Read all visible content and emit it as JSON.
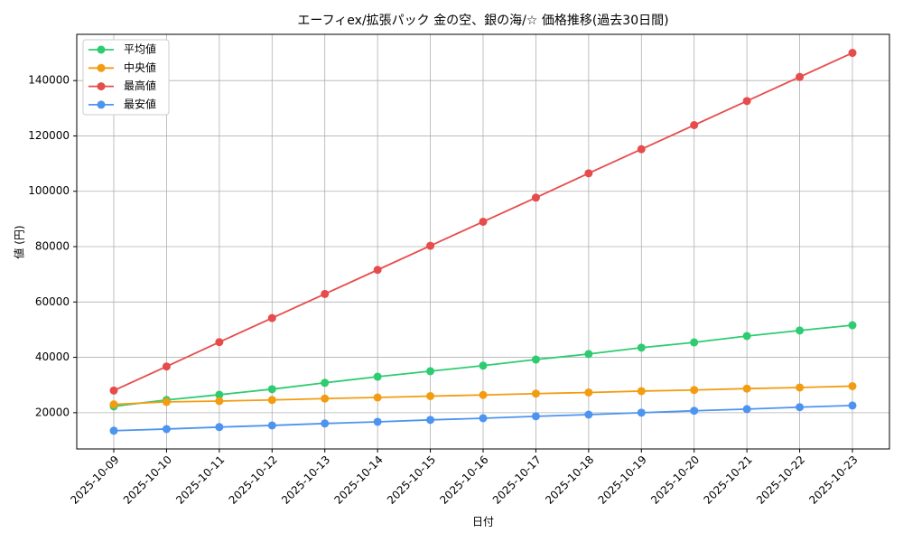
{
  "chart_data": {
    "type": "line",
    "title": "エーフィex/拡張パック 金の空、銀の海/☆ 価格推移(過去30日間)",
    "x_label": "日付",
    "y_label": "値 (円)",
    "categories": [
      "2025-10-09",
      "2025-10-10",
      "2025-10-11",
      "2025-10-12",
      "2025-10-13",
      "2025-10-14",
      "2025-10-15",
      "2025-10-16",
      "2025-10-17",
      "2025-10-18",
      "2025-10-19",
      "2025-10-20",
      "2025-10-21",
      "2025-10-22",
      "2025-10-23"
    ],
    "series": [
      {
        "name": "平均値",
        "color": "#2ecc71",
        "values": [
          22300,
          24600,
          26500,
          28500,
          30800,
          33000,
          35000,
          37000,
          39200,
          41200,
          43500,
          45400,
          47700,
          49700,
          51600
        ]
      },
      {
        "name": "中央値",
        "color": "#f39c12",
        "values": [
          23000,
          23900,
          24200,
          24600,
          25100,
          25500,
          26000,
          26400,
          26900,
          27300,
          27800,
          28200,
          28700,
          29100,
          29600
        ]
      },
      {
        "name": "最高値",
        "color": "#e74c4c",
        "values": [
          28000,
          36700,
          45500,
          54200,
          62900,
          71600,
          80300,
          89000,
          97700,
          106500,
          115200,
          123900,
          132600,
          141300,
          150000
        ]
      },
      {
        "name": "最安値",
        "color": "#4d94f0",
        "values": [
          13500,
          14100,
          14800,
          15400,
          16100,
          16700,
          17400,
          18000,
          18700,
          19300,
          20000,
          20700,
          21300,
          22000,
          22600
        ]
      }
    ],
    "ylim": [
      6900,
      156700
    ],
    "yticks": [
      20000,
      40000,
      60000,
      80000,
      100000,
      120000,
      140000
    ],
    "grid": true,
    "legend": "upper-left"
  }
}
